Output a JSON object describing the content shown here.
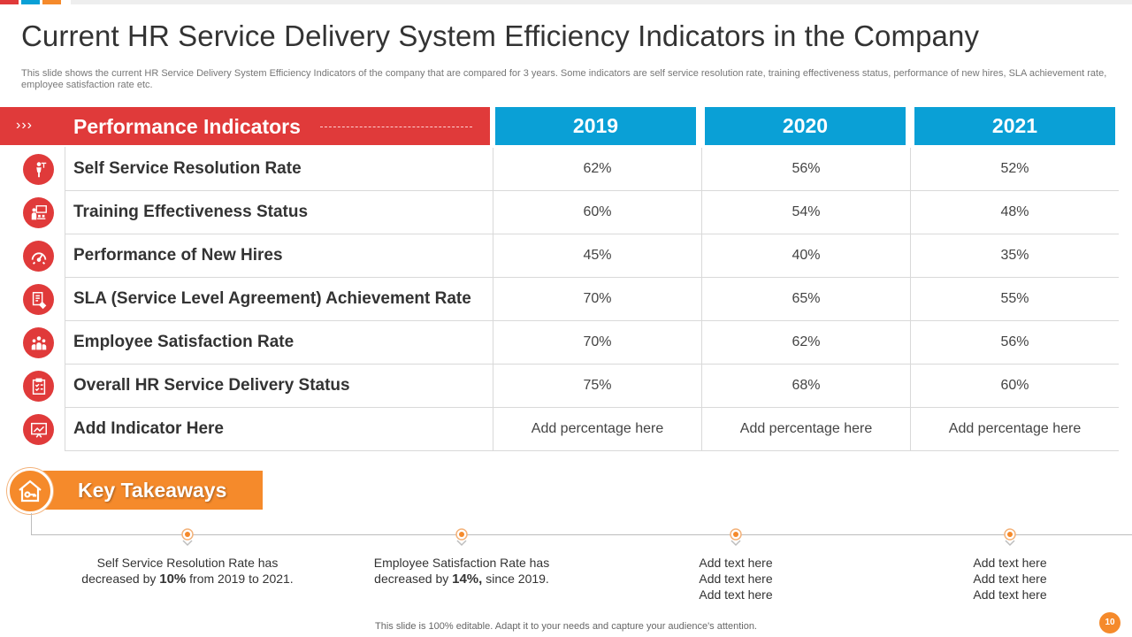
{
  "title": "Current HR Service Delivery System Efficiency Indicators in the Company",
  "subtitle": "This slide shows the current HR Service Delivery System Efficiency Indicators of the company that are compared for 3 years. Some indicators are self service resolution rate, training effectiveness status, performance of new hires, SLA achievement rate, employee satisfaction rate etc.",
  "table": {
    "header_label": "Performance Indicators",
    "header_arrows": "›››",
    "years": [
      "2019",
      "2020",
      "2021"
    ],
    "rows": [
      {
        "name": "Self Service Resolution Rate",
        "values": [
          "62%",
          "56%",
          "52%"
        ],
        "icon": "presenter-icon"
      },
      {
        "name": "Training Effectiveness Status",
        "values": [
          "60%",
          "54%",
          "48%"
        ],
        "icon": "training-board-icon"
      },
      {
        "name": "Performance of New Hires",
        "values": [
          "45%",
          "40%",
          "35%"
        ],
        "icon": "speedometer-icon"
      },
      {
        "name": "SLA (Service Level Agreement) Achievement Rate",
        "values": [
          "70%",
          "65%",
          "55%"
        ],
        "icon": "agreement-document-icon"
      },
      {
        "name": "Employee Satisfaction Rate",
        "values": [
          "70%",
          "62%",
          "56%"
        ],
        "icon": "team-icon"
      },
      {
        "name": "Overall HR Service Delivery Status",
        "values": [
          "75%",
          "68%",
          "60%"
        ],
        "icon": "clipboard-checklist-icon"
      },
      {
        "name": "Add Indicator Here",
        "values": [
          "Add percentage here",
          "Add percentage here",
          "Add percentage here"
        ],
        "icon": "chart-board-icon"
      }
    ]
  },
  "takeaways": {
    "label": "Key Takeaways",
    "items": [
      {
        "pre": "Self Service Resolution Rate has decreased by ",
        "bold": "10%",
        "post": " from 2019 to 2021."
      },
      {
        "pre": "Employee Satisfaction Rate has decreased by ",
        "bold": "14%,",
        "post": " since 2019."
      },
      {
        "lines": [
          "Add text here",
          "Add text here",
          "Add text here"
        ]
      },
      {
        "lines": [
          "Add text here",
          "Add text here",
          "Add text here"
        ]
      }
    ]
  },
  "footer": "This slide is 100% editable. Adapt it to your needs and capture your audience's attention.",
  "page_number": "10",
  "colors": {
    "red": "#e03a3a",
    "blue": "#0aa0d6",
    "orange": "#f58a2b"
  }
}
